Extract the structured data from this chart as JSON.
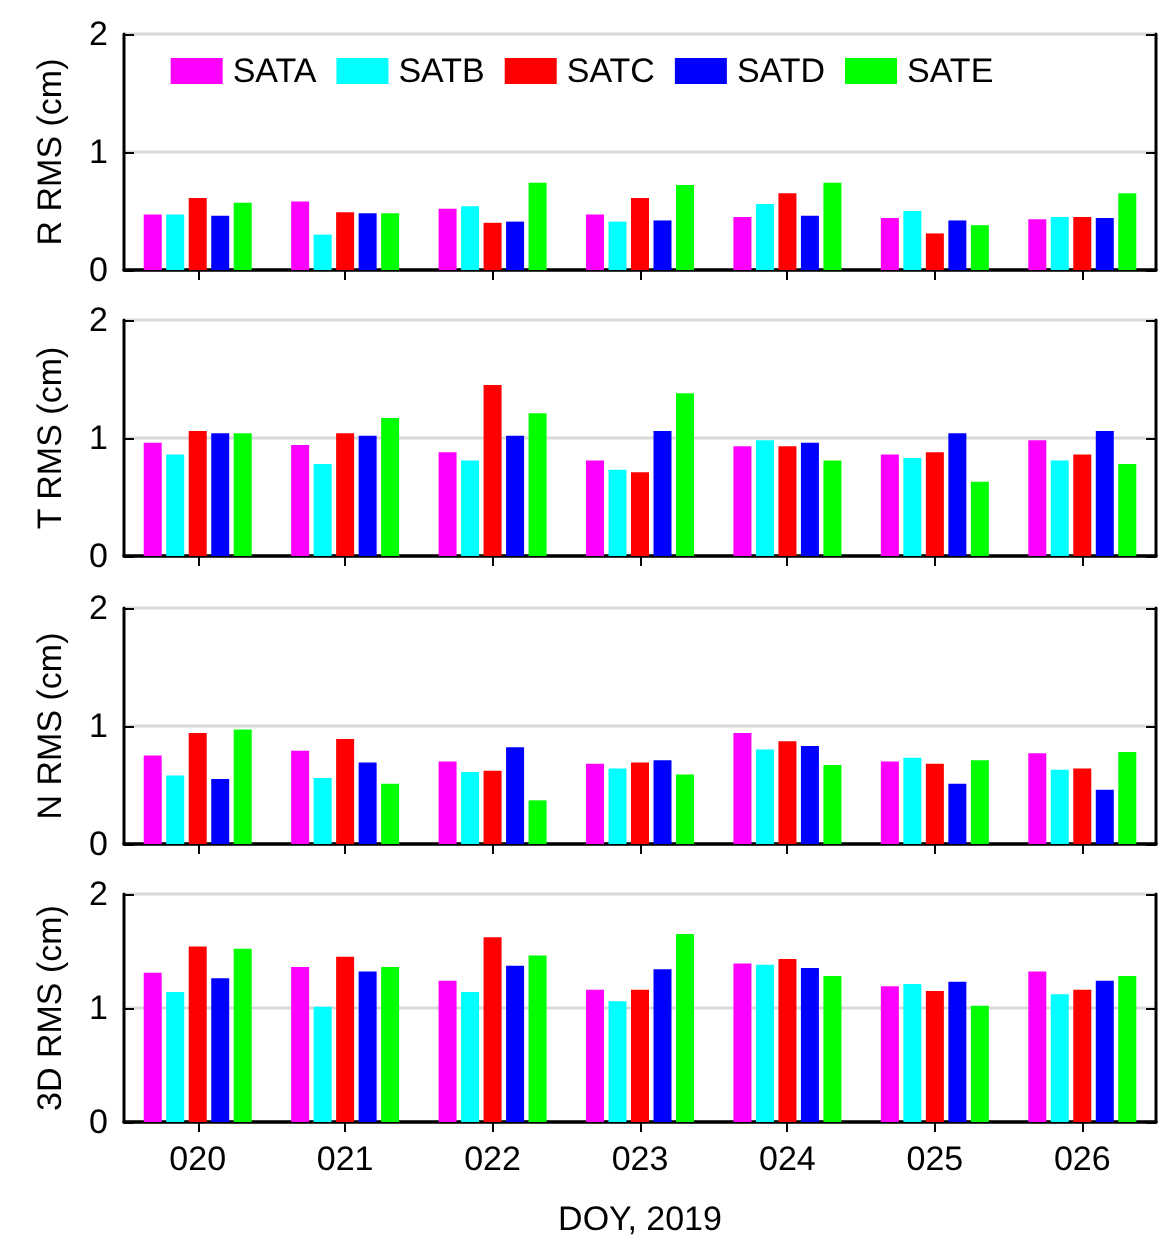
{
  "chart_data": [
    {
      "type": "bar",
      "ylabel": "R RMS (cm)",
      "categories": [
        "020",
        "021",
        "022",
        "023",
        "024",
        "025",
        "026"
      ],
      "ylim": [
        0,
        2
      ],
      "yticks": [
        0,
        1,
        2
      ],
      "grid": "y",
      "legend": "top",
      "tick_labels": "y",
      "series": [
        {
          "name": "SATA",
          "color": "#ff00ff",
          "values": [
            0.47,
            0.58,
            0.52,
            0.47,
            0.45,
            0.44,
            0.43
          ]
        },
        {
          "name": "SATB",
          "color": "#00ffff",
          "values": [
            0.47,
            0.3,
            0.54,
            0.41,
            0.56,
            0.5,
            0.45
          ]
        },
        {
          "name": "SATC",
          "color": "#ff0000",
          "values": [
            0.61,
            0.49,
            0.4,
            0.61,
            0.65,
            0.31,
            0.45
          ]
        },
        {
          "name": "SATD",
          "color": "#0000ff",
          "values": [
            0.46,
            0.48,
            0.41,
            0.42,
            0.46,
            0.42,
            0.44
          ]
        },
        {
          "name": "SATE",
          "color": "#00ff00",
          "values": [
            0.57,
            0.48,
            0.74,
            0.72,
            0.74,
            0.38,
            0.65
          ]
        }
      ]
    },
    {
      "type": "bar",
      "ylabel": "T RMS (cm)",
      "categories": [
        "020",
        "021",
        "022",
        "023",
        "024",
        "025",
        "026"
      ],
      "ylim": [
        0,
        2
      ],
      "yticks": [
        0,
        1,
        2
      ],
      "grid": "y",
      "tick_labels": "y",
      "series": [
        {
          "color": "#ff00ff",
          "values": [
            0.96,
            0.94,
            0.88,
            0.81,
            0.93,
            0.86,
            0.98
          ]
        },
        {
          "color": "#00ffff",
          "values": [
            0.86,
            0.78,
            0.81,
            0.73,
            0.98,
            0.83,
            0.81
          ]
        },
        {
          "color": "#ff0000",
          "values": [
            1.06,
            1.04,
            1.45,
            0.71,
            0.93,
            0.88,
            0.86
          ]
        },
        {
          "color": "#0000ff",
          "values": [
            1.04,
            1.02,
            1.02,
            1.06,
            0.96,
            1.04,
            1.06
          ]
        },
        {
          "color": "#00ff00",
          "values": [
            1.04,
            1.17,
            1.21,
            1.38,
            0.81,
            0.63,
            0.78
          ]
        }
      ]
    },
    {
      "type": "bar",
      "ylabel": "N RMS (cm)",
      "categories": [
        "020",
        "021",
        "022",
        "023",
        "024",
        "025",
        "026"
      ],
      "ylim": [
        0,
        2
      ],
      "yticks": [
        0,
        1,
        2
      ],
      "grid": "y",
      "tick_labels": "y",
      "series": [
        {
          "color": "#ff00ff",
          "values": [
            0.75,
            0.79,
            0.7,
            0.68,
            0.94,
            0.7,
            0.77
          ]
        },
        {
          "color": "#00ffff",
          "values": [
            0.58,
            0.56,
            0.61,
            0.64,
            0.8,
            0.73,
            0.63
          ]
        },
        {
          "color": "#ff0000",
          "values": [
            0.94,
            0.89,
            0.62,
            0.69,
            0.87,
            0.68,
            0.64
          ]
        },
        {
          "color": "#0000ff",
          "values": [
            0.55,
            0.69,
            0.82,
            0.71,
            0.83,
            0.51,
            0.46
          ]
        },
        {
          "color": "#00ff00",
          "values": [
            0.97,
            0.51,
            0.37,
            0.59,
            0.67,
            0.71,
            0.78
          ]
        }
      ]
    },
    {
      "type": "bar",
      "ylabel": "3D RMS (cm)",
      "xlabel": "DOY, 2019",
      "categories": [
        "020",
        "021",
        "022",
        "023",
        "024",
        "025",
        "026"
      ],
      "ylim": [
        0,
        2
      ],
      "yticks": [
        0,
        1,
        2
      ],
      "grid": "y",
      "series": [
        {
          "color": "#ff00ff",
          "values": [
            1.31,
            1.36,
            1.24,
            1.16,
            1.39,
            1.19,
            1.32
          ]
        },
        {
          "color": "#00ffff",
          "values": [
            1.14,
            1.01,
            1.14,
            1.06,
            1.38,
            1.21,
            1.12
          ]
        },
        {
          "color": "#ff0000",
          "values": [
            1.54,
            1.45,
            1.62,
            1.16,
            1.43,
            1.15,
            1.16
          ]
        },
        {
          "color": "#0000ff",
          "values": [
            1.26,
            1.32,
            1.37,
            1.34,
            1.35,
            1.23,
            1.24
          ]
        },
        {
          "color": "#00ff00",
          "values": [
            1.52,
            1.36,
            1.46,
            1.65,
            1.28,
            1.02,
            1.28
          ]
        }
      ]
    }
  ]
}
